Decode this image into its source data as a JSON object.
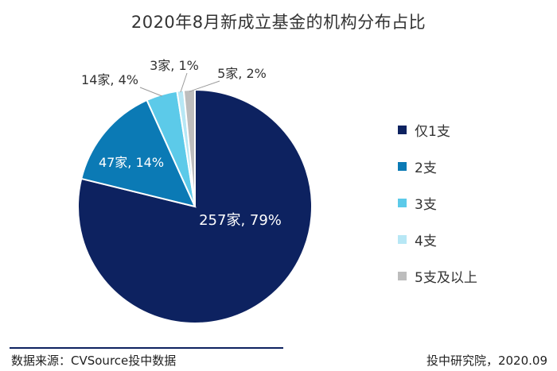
{
  "chart_data": {
    "type": "pie",
    "title": "2020年8月新成立基金的机构分布占比",
    "categories": [
      "仅1支",
      "2支",
      "3支",
      "4支",
      "5支及以上"
    ],
    "values": [
      257,
      47,
      14,
      3,
      5
    ],
    "percent": [
      79,
      14,
      4,
      1,
      2
    ],
    "data_labels": [
      "257家, 79%",
      "47家, 14%",
      "14家, 4%",
      "3家, 1%",
      "5家, 2%"
    ],
    "colors": [
      "#0d2260",
      "#0b7ab5",
      "#5ccae9",
      "#b7e7f5",
      "#bdbdbd"
    ],
    "legend_placement": "right",
    "start": "12 o'clock",
    "direction": "clockwise"
  },
  "footer": {
    "source": "数据来源：CVSource投中数据",
    "credit": "投中研究院，2020.09"
  }
}
